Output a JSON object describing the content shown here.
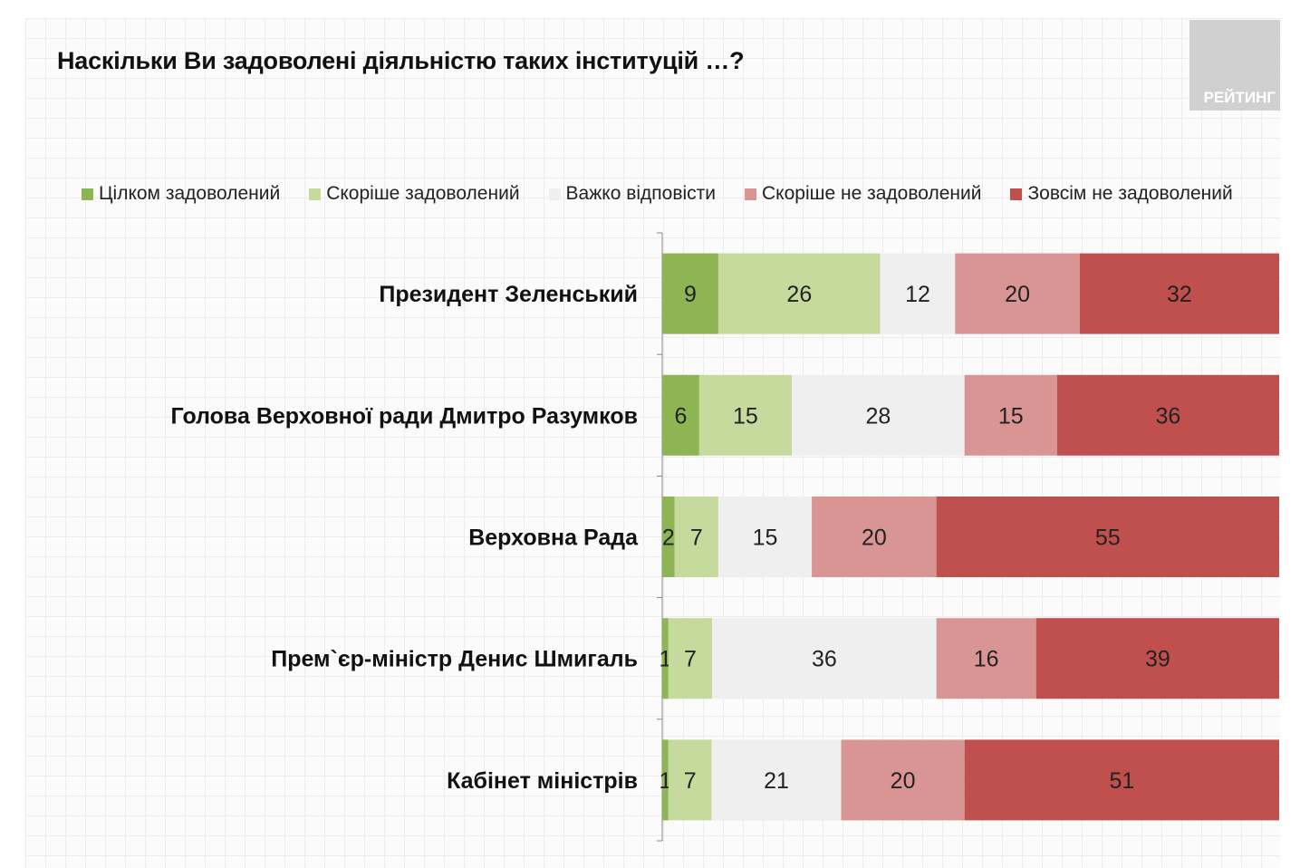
{
  "title": "Наскільки Ви задоволені діяльністю таких інституцій …?",
  "logo_text": "РЕЙТИНГ",
  "chart_data": {
    "type": "bar",
    "orientation": "horizontal-stacked-100",
    "title": "Наскільки Ви задоволені діяльністю таких інституцій …?",
    "categories": [
      "Президент Зеленський",
      "Голова Верховної ради Дмитро Разумков",
      "Верховна Рада",
      "Прем`єр-міністр Денис Шмигаль",
      "Кабінет міністрів"
    ],
    "series": [
      {
        "name": "Цілком задоволений",
        "color": "#8db554",
        "text_color": "#222",
        "values": [
          9,
          6,
          2,
          1,
          1
        ]
      },
      {
        "name": "Скоріше задоволений",
        "color": "#c5da9c",
        "text_color": "#222",
        "values": [
          26,
          15,
          7,
          7,
          7
        ]
      },
      {
        "name": "Важко відповісти",
        "color": "#efefef",
        "text_color": "#222",
        "values": [
          12,
          28,
          15,
          36,
          21
        ]
      },
      {
        "name": "Скоріше не задоволений",
        "color": "#d99594",
        "text_color": "#222",
        "values": [
          20,
          15,
          20,
          16,
          20
        ]
      },
      {
        "name": "Зовсім не задоволений",
        "color": "#c0504d",
        "text_color": "#222",
        "values": [
          32,
          36,
          55,
          39,
          51
        ]
      }
    ],
    "legend_position": "top",
    "grid": false
  }
}
